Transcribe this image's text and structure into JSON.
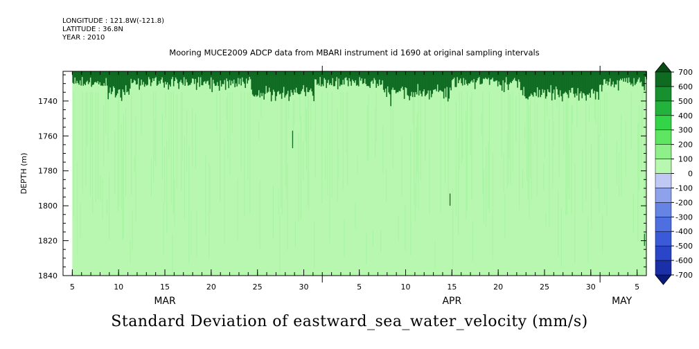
{
  "header": {
    "longitude": "LONGITUDE : 121.8W(-121.8)",
    "latitude": "LATITUDE : 36.8N",
    "year": "YEAR : 2010"
  },
  "chart_data": {
    "type": "heatmap",
    "title": "Mooring MUCE2009 ADCP data from MBARI instrument id 1690 at original sampling intervals",
    "caption": "Standard Deviation of eastward_sea_water_velocity (mm/s)",
    "ylabel": "DEPTH (m)",
    "ylim": [
      1840,
      1723
    ],
    "y_ticks": [
      1740,
      1760,
      1780,
      1800,
      1820,
      1840
    ],
    "x_range": [
      "2010-03-04",
      "2010-05-06"
    ],
    "x_major_labels": [
      {
        "date": "2010-03-05",
        "label": "5"
      },
      {
        "date": "2010-03-10",
        "label": "10"
      },
      {
        "date": "2010-03-15",
        "label": "15"
      },
      {
        "date": "2010-03-20",
        "label": "20"
      },
      {
        "date": "2010-03-25",
        "label": "25"
      },
      {
        "date": "2010-03-30",
        "label": "30"
      },
      {
        "date": "2010-04-05",
        "label": "5"
      },
      {
        "date": "2010-04-10",
        "label": "10"
      },
      {
        "date": "2010-04-15",
        "label": "15"
      },
      {
        "date": "2010-04-20",
        "label": "20"
      },
      {
        "date": "2010-04-25",
        "label": "25"
      },
      {
        "date": "2010-04-30",
        "label": "30"
      },
      {
        "date": "2010-05-05",
        "label": "5"
      }
    ],
    "month_labels": [
      {
        "date": "2010-03-15",
        "label": "MAR"
      },
      {
        "date": "2010-04-15",
        "label": "APR"
      },
      {
        "date": "2010-05-05",
        "label": "MAY"
      }
    ],
    "data_start": "2010-03-05",
    "data_end": "2010-05-06",
    "data_top_depth": 1723,
    "data_bottom_depth": 1840,
    "background_value_band": "0 to 100",
    "surface_high_band_depth_range": [
      1723,
      1745
    ],
    "colorbar": {
      "levels": [
        -700,
        -600,
        -500,
        -400,
        -300,
        -200,
        -100,
        0,
        100,
        200,
        300,
        400,
        500,
        600,
        700
      ],
      "colors": [
        "#0a1a7a",
        "#1a2fa8",
        "#2a45c8",
        "#3a5ad8",
        "#4d6fe0",
        "#6584e4",
        "#8ea2ec",
        "#c0c8f4",
        "#b7f7b0",
        "#8ff08a",
        "#5ee662",
        "#33d447",
        "#23b23b",
        "#18902f",
        "#0f6b22",
        "#0a4a15"
      ]
    }
  }
}
